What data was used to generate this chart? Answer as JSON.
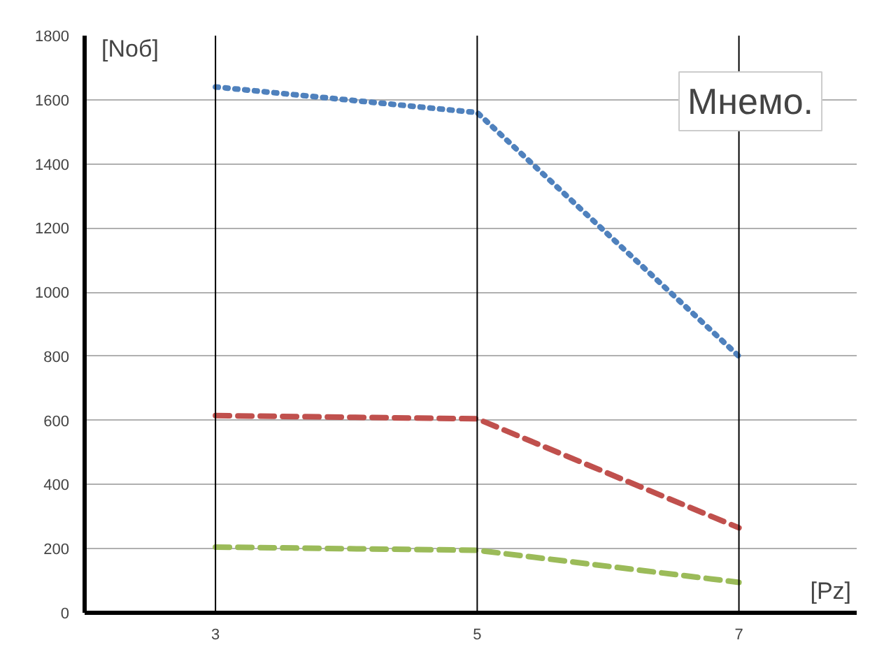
{
  "chart_data": {
    "type": "line",
    "xlabel": "[Pz]",
    "ylabel": "[Nоб]",
    "x": [
      3,
      5,
      7
    ],
    "series": [
      {
        "color": "#4f81bd",
        "line_style": "dotted",
        "values": [
          1640,
          1560,
          800
        ]
      },
      {
        "color": "#c0504d",
        "line_style": "dashed",
        "values": [
          615,
          605,
          265
        ]
      },
      {
        "color": "#9bbb59",
        "line_style": "dashed",
        "values": [
          205,
          195,
          95
        ]
      }
    ],
    "xlim": [
      2,
      7.9
    ],
    "xticks": [
      3,
      5,
      7
    ],
    "ylim": [
      0,
      1800
    ],
    "yticks": [
      0,
      200,
      400,
      600,
      800,
      1000,
      1200,
      1400,
      1600,
      1800
    ],
    "grid": "y",
    "marker": "none",
    "ref_lines": [
      {
        "axis": "x",
        "value": 3,
        "color": "#000000"
      },
      {
        "axis": "x",
        "value": 5,
        "color": "#000000"
      },
      {
        "axis": "x",
        "value": 7,
        "color": "#000000"
      }
    ],
    "annotations": [
      "Мнемо."
    ]
  }
}
